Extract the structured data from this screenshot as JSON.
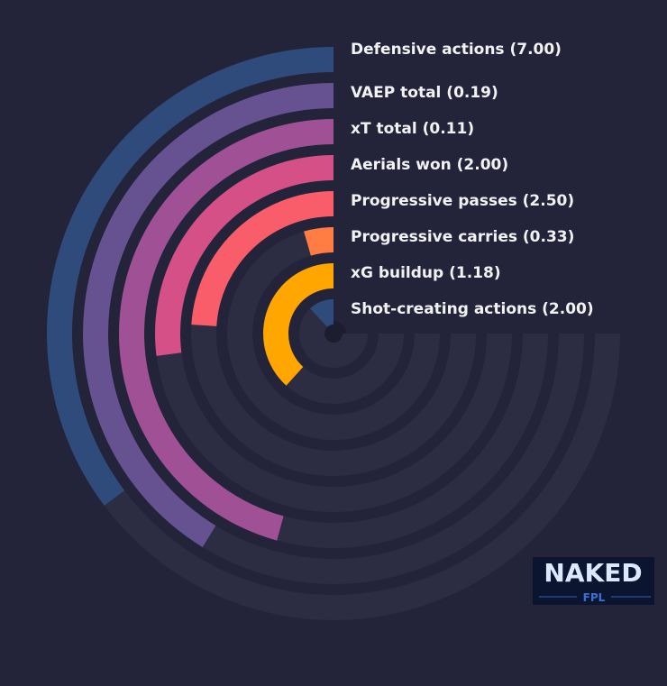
{
  "chart_data": {
    "type": "radial-bar",
    "categories": [
      "Defensive actions (7.00)",
      "VAEP total (0.19)",
      "xT total (0.11)",
      "Aerials won (2.00)",
      "Progressive passes (2.50)",
      "Progressive carries (0.33)",
      "xG buildup (1.18)",
      "Shot-creating actions (2.00)"
    ],
    "values": [
      47,
      55,
      61,
      36,
      32,
      6,
      51,
      16
    ],
    "colors": [
      "#2f4b7c",
      "#665191",
      "#a05195",
      "#d45087",
      "#f95d6a",
      "#ff7c43",
      "#ffa600",
      "#2f4b7c"
    ],
    "ylim": [
      0,
      100
    ]
  },
  "logo": {
    "title": "NAKED",
    "subtitle": "FPL"
  }
}
